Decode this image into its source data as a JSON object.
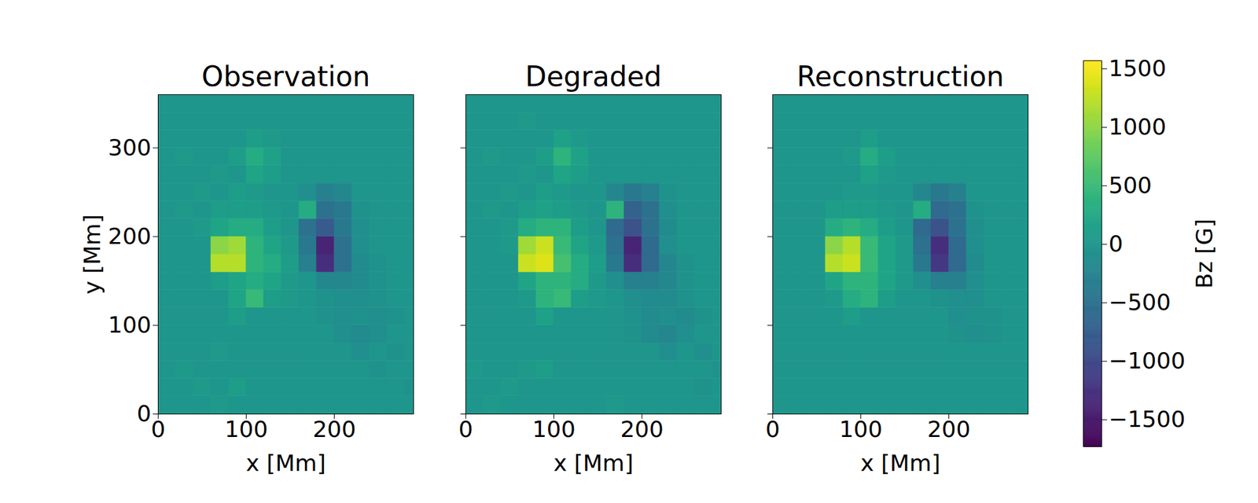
{
  "chart_data": {
    "type": "heatmap",
    "xlim": [
      0,
      290
    ],
    "ylim": [
      0,
      360
    ],
    "xticks": [
      0,
      100,
      200
    ],
    "yticks": [
      0,
      100,
      200,
      300
    ],
    "x_edges": [
      0,
      20,
      40,
      60,
      80,
      100,
      120,
      140,
      160,
      180,
      200,
      220,
      240,
      260,
      280,
      290
    ],
    "y_edges": [
      0,
      20,
      40,
      60,
      80,
      100,
      120,
      140,
      160,
      180,
      200,
      220,
      240,
      260,
      280,
      300,
      320,
      340,
      360
    ],
    "colorbar": {
      "label": "Bz [G]",
      "range": [
        -1730,
        1570
      ],
      "ticks": [
        -1500,
        -1000,
        -500,
        0,
        500,
        1000,
        1500
      ]
    },
    "panels": [
      {
        "title": "Observation",
        "xlabel": "x [Mm]",
        "ylabel": "y [Mm]",
        "tick_labels": true,
        "z": [
          [
            0,
            0,
            0,
            50,
            0,
            0,
            0,
            0,
            0,
            0,
            0,
            0,
            0,
            0,
            0
          ],
          [
            0,
            0,
            50,
            0,
            100,
            0,
            0,
            0,
            0,
            0,
            0,
            0,
            0,
            0,
            -50
          ],
          [
            0,
            50,
            0,
            0,
            0,
            0,
            0,
            0,
            0,
            0,
            0,
            0,
            -50,
            0,
            0
          ],
          [
            0,
            0,
            0,
            50,
            0,
            0,
            0,
            0,
            0,
            0,
            0,
            -100,
            0,
            -50,
            0
          ],
          [
            0,
            0,
            0,
            0,
            0,
            0,
            0,
            0,
            0,
            0,
            -100,
            -150,
            -100,
            0,
            0
          ],
          [
            0,
            0,
            0,
            0,
            100,
            0,
            0,
            0,
            0,
            -50,
            -100,
            -50,
            -100,
            -50,
            0
          ],
          [
            0,
            0,
            0,
            0,
            200,
            500,
            100,
            50,
            0,
            -50,
            -100,
            -100,
            -50,
            0,
            0
          ],
          [
            0,
            0,
            0,
            100,
            200,
            300,
            200,
            50,
            0,
            -200,
            -200,
            -150,
            -50,
            0,
            0
          ],
          [
            0,
            0,
            0,
            1200,
            1200,
            400,
            300,
            100,
            -300,
            -1300,
            -500,
            -150,
            -50,
            0,
            0
          ],
          [
            0,
            0,
            0,
            1000,
            1100,
            400,
            200,
            50,
            -400,
            -1400,
            -500,
            -100,
            0,
            0,
            0
          ],
          [
            0,
            0,
            50,
            200,
            300,
            300,
            100,
            0,
            -500,
            -800,
            -400,
            -100,
            0,
            0,
            0
          ],
          [
            0,
            50,
            0,
            100,
            100,
            100,
            50,
            0,
            300,
            -500,
            -400,
            -50,
            0,
            0,
            0
          ],
          [
            0,
            0,
            50,
            0,
            100,
            50,
            0,
            0,
            -100,
            -300,
            -200,
            0,
            0,
            0,
            0
          ],
          [
            0,
            0,
            0,
            50,
            0,
            200,
            100,
            0,
            0,
            0,
            0,
            0,
            0,
            0,
            0
          ],
          [
            0,
            50,
            0,
            0,
            100,
            300,
            150,
            0,
            0,
            0,
            0,
            0,
            0,
            0,
            0
          ],
          [
            0,
            0,
            0,
            0,
            0,
            100,
            50,
            0,
            0,
            0,
            0,
            0,
            0,
            0,
            0
          ],
          [
            0,
            0,
            0,
            0,
            0,
            0,
            0,
            0,
            0,
            0,
            0,
            0,
            0,
            0,
            0
          ],
          [
            0,
            0,
            0,
            0,
            0,
            0,
            0,
            0,
            0,
            0,
            0,
            0,
            0,
            0,
            0
          ]
        ]
      },
      {
        "title": "Degraded",
        "xlabel": "x [Mm]",
        "tick_labels": "x",
        "z": [
          [
            0,
            50,
            0,
            0,
            0,
            0,
            0,
            0,
            50,
            0,
            0,
            0,
            0,
            0,
            0
          ],
          [
            0,
            0,
            50,
            0,
            0,
            0,
            0,
            0,
            0,
            0,
            0,
            0,
            0,
            -50,
            0
          ],
          [
            50,
            0,
            0,
            50,
            100,
            0,
            0,
            0,
            0,
            0,
            0,
            0,
            0,
            0,
            -50
          ],
          [
            0,
            0,
            0,
            0,
            0,
            0,
            0,
            0,
            0,
            0,
            0,
            -100,
            0,
            -100,
            0
          ],
          [
            0,
            0,
            0,
            0,
            0,
            0,
            0,
            0,
            0,
            -50,
            -150,
            -200,
            -100,
            0,
            0
          ],
          [
            0,
            0,
            0,
            0,
            150,
            0,
            0,
            0,
            0,
            -50,
            -150,
            -100,
            -150,
            -50,
            0
          ],
          [
            0,
            0,
            0,
            50,
            400,
            500,
            100,
            50,
            0,
            -100,
            -150,
            -150,
            -50,
            0,
            0
          ],
          [
            0,
            0,
            0,
            200,
            400,
            400,
            300,
            50,
            -100,
            -300,
            -300,
            -200,
            -50,
            0,
            0
          ],
          [
            0,
            0,
            0,
            1300,
            1400,
            600,
            300,
            100,
            -400,
            -1300,
            -600,
            -200,
            -50,
            0,
            0
          ],
          [
            0,
            0,
            50,
            1100,
            1300,
            500,
            200,
            50,
            -500,
            -1400,
            -600,
            -100,
            0,
            0,
            0
          ],
          [
            0,
            0,
            50,
            300,
            400,
            400,
            100,
            0,
            -600,
            -900,
            -500,
            -150,
            0,
            0,
            0
          ],
          [
            0,
            50,
            0,
            100,
            150,
            100,
            50,
            0,
            400,
            -700,
            -500,
            -100,
            0,
            0,
            0
          ],
          [
            0,
            0,
            50,
            0,
            100,
            50,
            0,
            0,
            -200,
            -400,
            -300,
            -50,
            0,
            0,
            0
          ],
          [
            0,
            0,
            0,
            50,
            0,
            200,
            100,
            0,
            0,
            0,
            0,
            0,
            0,
            0,
            0
          ],
          [
            0,
            50,
            0,
            0,
            100,
            400,
            150,
            0,
            0,
            0,
            0,
            0,
            0,
            0,
            0
          ],
          [
            0,
            0,
            0,
            0,
            0,
            150,
            50,
            0,
            0,
            0,
            0,
            0,
            0,
            0,
            0
          ],
          [
            0,
            0,
            0,
            50,
            0,
            0,
            0,
            0,
            0,
            0,
            0,
            0,
            0,
            0,
            0
          ],
          [
            0,
            0,
            0,
            0,
            0,
            0,
            0,
            0,
            0,
            0,
            0,
            0,
            0,
            0,
            0
          ]
        ]
      },
      {
        "title": "Reconstruction",
        "xlabel": "x [Mm]",
        "tick_labels": "x",
        "z": [
          [
            0,
            0,
            0,
            0,
            0,
            0,
            0,
            0,
            0,
            0,
            0,
            0,
            0,
            0,
            0
          ],
          [
            0,
            0,
            0,
            0,
            0,
            0,
            0,
            0,
            0,
            0,
            0,
            0,
            0,
            0,
            0
          ],
          [
            0,
            0,
            0,
            0,
            0,
            0,
            0,
            0,
            0,
            0,
            0,
            0,
            0,
            0,
            0
          ],
          [
            0,
            0,
            0,
            0,
            0,
            0,
            0,
            0,
            0,
            0,
            0,
            0,
            0,
            0,
            0
          ],
          [
            0,
            0,
            0,
            0,
            0,
            0,
            0,
            0,
            0,
            0,
            -50,
            -100,
            -50,
            0,
            0
          ],
          [
            0,
            0,
            0,
            0,
            100,
            0,
            0,
            0,
            0,
            0,
            -100,
            -50,
            -50,
            0,
            0
          ],
          [
            0,
            0,
            0,
            50,
            300,
            400,
            100,
            0,
            0,
            -50,
            -100,
            -100,
            0,
            0,
            0
          ],
          [
            0,
            0,
            0,
            200,
            400,
            400,
            200,
            50,
            -100,
            -300,
            -300,
            -100,
            0,
            0,
            0
          ],
          [
            0,
            0,
            0,
            1200,
            1300,
            500,
            200,
            50,
            -400,
            -1200,
            -600,
            -150,
            0,
            0,
            0
          ],
          [
            0,
            0,
            0,
            1000,
            1200,
            500,
            200,
            50,
            -500,
            -1300,
            -600,
            -100,
            0,
            0,
            0
          ],
          [
            0,
            0,
            0,
            300,
            400,
            300,
            100,
            0,
            -600,
            -900,
            -500,
            -100,
            0,
            0,
            0
          ],
          [
            0,
            0,
            0,
            100,
            100,
            100,
            50,
            0,
            300,
            -600,
            -500,
            -50,
            0,
            0,
            0
          ],
          [
            0,
            0,
            0,
            0,
            50,
            50,
            0,
            0,
            -200,
            -400,
            -300,
            0,
            0,
            0,
            0
          ],
          [
            0,
            0,
            0,
            0,
            0,
            150,
            50,
            0,
            0,
            0,
            0,
            0,
            0,
            0,
            0
          ],
          [
            0,
            0,
            0,
            0,
            50,
            300,
            100,
            0,
            0,
            0,
            0,
            0,
            0,
            0,
            0
          ],
          [
            0,
            0,
            0,
            0,
            0,
            100,
            0,
            0,
            0,
            0,
            0,
            0,
            0,
            0,
            0
          ],
          [
            0,
            0,
            0,
            0,
            0,
            0,
            0,
            0,
            0,
            0,
            0,
            0,
            0,
            0,
            0
          ],
          [
            0,
            0,
            0,
            0,
            0,
            0,
            0,
            0,
            0,
            0,
            0,
            0,
            0,
            0,
            0
          ]
        ]
      }
    ]
  }
}
